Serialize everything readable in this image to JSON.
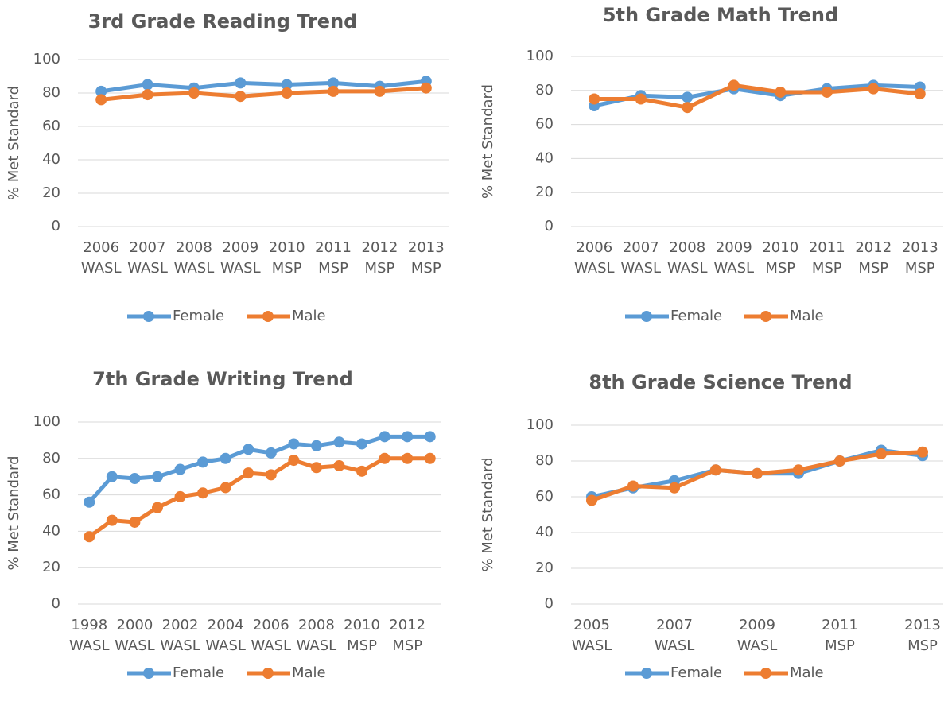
{
  "chart_data": [
    {
      "type": "line",
      "title": "3rd Grade Reading Trend",
      "y_label": "% Met Standard",
      "categories": [
        "2006 WASL",
        "2007 WASL",
        "2008 WASL",
        "2009 WASL",
        "2010 MSP",
        "2011 MSP",
        "2012 MSP",
        "2013 MSP"
      ],
      "series": [
        {
          "name": "Female",
          "color": "#5b9bd5",
          "values": [
            81,
            85,
            83,
            86,
            85,
            86,
            84,
            87
          ]
        },
        {
          "name": "Male",
          "color": "#ed7d31",
          "values": [
            76,
            79,
            80,
            78,
            80,
            81,
            81,
            83
          ]
        }
      ],
      "ylim": [
        0,
        100
      ],
      "yticks": [
        0,
        20,
        40,
        60,
        80,
        100
      ],
      "grid": true,
      "legend": "bottom"
    },
    {
      "type": "line",
      "title": "5th Grade Math Trend",
      "y_label": "% Met Standard",
      "categories": [
        "2006 WASL",
        "2007 WASL",
        "2008 WASL",
        "2009 WASL",
        "2010 MSP",
        "2011 MSP",
        "2012 MSP",
        "2013 MSP"
      ],
      "series": [
        {
          "name": "Female",
          "color": "#5b9bd5",
          "values": [
            71,
            77,
            76,
            81,
            77,
            81,
            83,
            82
          ]
        },
        {
          "name": "Male",
          "color": "#ed7d31",
          "values": [
            75,
            75,
            70,
            83,
            79,
            79,
            81,
            78
          ]
        }
      ],
      "ylim": [
        0,
        100
      ],
      "yticks": [
        0,
        20,
        40,
        60,
        80,
        100
      ],
      "grid": true,
      "legend": "bottom"
    },
    {
      "type": "line",
      "title": "7th Grade Writing Trend",
      "y_label": "% Met Standard",
      "categories": [
        "1998 WASL",
        null,
        "2000 WASL",
        null,
        "2002 WASL",
        null,
        "2004 WASL",
        null,
        "2006 WASL",
        null,
        "2008 WASL",
        null,
        "2010 MSP",
        null,
        "2012 MSP",
        null
      ],
      "series": [
        {
          "name": "Female",
          "color": "#5b9bd5",
          "values": [
            56,
            70,
            69,
            70,
            74,
            78,
            80,
            85,
            83,
            88,
            87,
            89,
            88,
            92,
            92,
            92
          ]
        },
        {
          "name": "Male",
          "color": "#ed7d31",
          "values": [
            37,
            46,
            45,
            53,
            59,
            61,
            64,
            72,
            71,
            79,
            75,
            76,
            73,
            80,
            80,
            80
          ]
        }
      ],
      "ylim": [
        0,
        100
      ],
      "yticks": [
        0,
        20,
        40,
        60,
        80,
        100
      ],
      "grid": true,
      "legend": "bottom"
    },
    {
      "type": "line",
      "title": "8th Grade Science Trend",
      "y_label": "% Met Standard",
      "categories": [
        "2005 WASL",
        null,
        "2007 WASL",
        null,
        "2009 WASL",
        null,
        "2011 MSP",
        null,
        "2013 MSP"
      ],
      "series": [
        {
          "name": "Female",
          "color": "#5b9bd5",
          "values": [
            60,
            65,
            69,
            75,
            73,
            73,
            80,
            86,
            83
          ]
        },
        {
          "name": "Male",
          "color": "#ed7d31",
          "values": [
            58,
            66,
            65,
            75,
            73,
            75,
            80,
            84,
            85
          ]
        }
      ],
      "ylim": [
        0,
        100
      ],
      "yticks": [
        0,
        20,
        40,
        60,
        80,
        100
      ],
      "grid": true,
      "legend": "bottom"
    }
  ]
}
